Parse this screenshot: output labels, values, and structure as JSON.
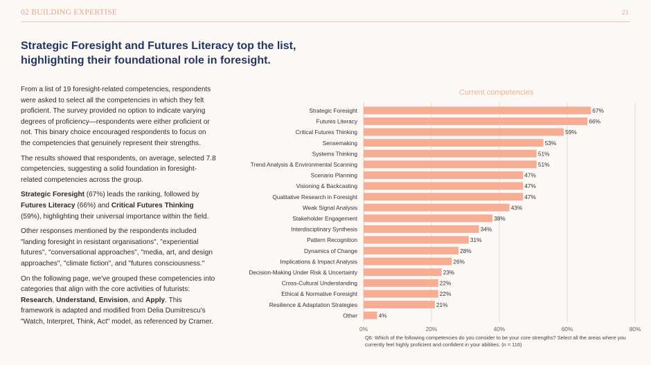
{
  "header": {
    "section": "02 BUILDING EXPERTISE",
    "page_number": "21"
  },
  "title": "Strategic Foresight and Futures Literacy top the list, highlighting their foundational role in foresight.",
  "body": {
    "p1": "From a list of 19 foresight-related competencies, respondents were asked to select all the competencies in which they felt proficient. The survey provided no option to indicate varying degrees of proficiency—respondents were either proficient or not. This binary choice encouraged respondents to focus on the competencies that genuinely represent their strengths.",
    "p2": "The results showed that respondents, on average, selected 7.8 competencies, suggesting a solid foundation in foresight-related competencies across the group.",
    "p3": {
      "b1": "Strategic Foresight",
      "t1": " (67%) leads the ranking, followed by ",
      "b2": "Futures Literacy",
      "t2": " (66%) and ",
      "b3": "Critical Futures Thinking",
      "t3": " (59%), highlighting their universal importance within the field."
    },
    "p4": "Other responses mentioned by the respondents included \"landing foresight in resistant organisations\", \"experiential futures\", \"conversational approaches\", \"media, art, and design approaches\", \"climate fiction\", and \"futures consciousness.\"",
    "p5": {
      "t1": "On the following page, we've grouped these competencies into categories that align with the core activities of futurists: ",
      "b1": "Research",
      "t2": ", ",
      "b2": "Understand",
      "t3": ", ",
      "b3": "Envision",
      "t4": ", and ",
      "b4": "Apply",
      "t5": ". This framework is adapted and modified from Delia Dumitrescu's \"Watch, Interpret, Think, Act\" model, as referenced by Cramer."
    }
  },
  "chart_title": "Current competencies",
  "footnote": "Q6: Which of the following competencies do you consider to be your core strengths? Select all the areas where you currently feel highly proficient and confident in your abilities. (n = 116)",
  "colors": {
    "bar": "#f7ac94",
    "accent": "#e8a48b",
    "title": "#24375f",
    "grid": "#e6d4cc"
  },
  "chart_data": {
    "type": "bar",
    "orientation": "horizontal",
    "title": "Current competencies",
    "categories": [
      "Strategic Foresight",
      "Futures Literacy",
      "Critical Futures Thinking",
      "Sensemaking",
      "Systems Thinking",
      "Trend Analysis & Environmental Scanning",
      "Scenario Planning",
      "Visioning & Backcasting",
      "Qualitative Research in Foresight",
      "Weak Signal Analysis",
      "Stakeholder Engagement",
      "Interdisciplinary Synthesis",
      "Pattern Recognition",
      "Dynamics of Change",
      "Implications & Impact Analysis",
      "Decision-Making Under Risk & Uncertainty",
      "Cross-Cultural Understanding",
      "Ethical & Normative Foresight",
      "Resilience & Adaptation Strategies",
      "Other"
    ],
    "values": [
      67,
      66,
      59,
      53,
      51,
      51,
      47,
      47,
      47,
      43,
      38,
      34,
      31,
      28,
      26,
      23,
      22,
      22,
      21,
      4
    ],
    "value_labels": [
      "67%",
      "66%",
      "59%",
      "53%",
      "51%",
      "51%",
      "47%",
      "47%",
      "47%",
      "43%",
      "38%",
      "34%",
      "31%",
      "28%",
      "26%",
      "23%",
      "22%",
      "22%",
      "21%",
      "4%"
    ],
    "xlim": [
      0,
      80
    ],
    "xticks": [
      0,
      20,
      40,
      60,
      80
    ],
    "xtick_labels": [
      "0%",
      "20%",
      "40%",
      "60%",
      "80%"
    ],
    "grid": "vertical"
  }
}
